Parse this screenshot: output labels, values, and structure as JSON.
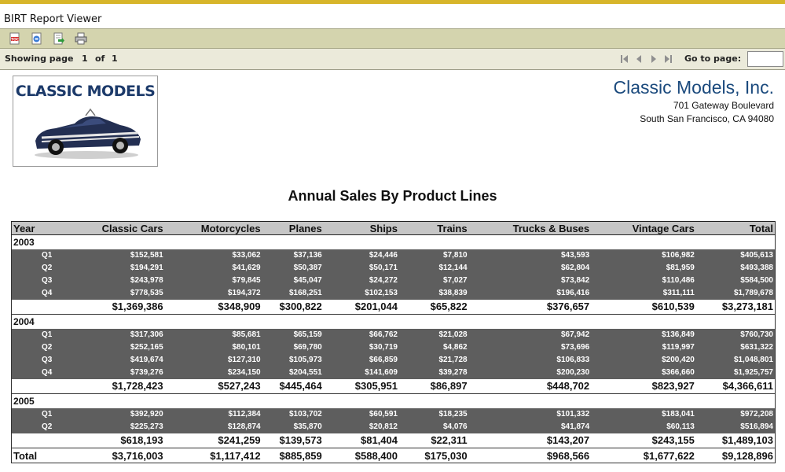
{
  "app": {
    "title": "BIRT Report Viewer"
  },
  "toolbar": {
    "buttons": [
      {
        "name": "toc-button",
        "icon": "toc-icon"
      },
      {
        "name": "parameters-button",
        "icon": "parameters-icon"
      },
      {
        "name": "export-button",
        "icon": "export-icon"
      },
      {
        "name": "print-button",
        "icon": "printer-icon"
      }
    ]
  },
  "navbar": {
    "showing_label": "Showing page",
    "page": "1",
    "of_label": "of",
    "total": "1",
    "goto_label": "Go to page:",
    "goto_value": ""
  },
  "logo": {
    "text": "CLASSIC MODELS"
  },
  "company": {
    "name": "Classic Models, Inc.",
    "address1": "701 Gateway Boulevard",
    "address2": "South San Francisco, CA 94080"
  },
  "report": {
    "title": "Annual Sales By Product Lines",
    "headers": [
      "Year",
      "Classic Cars",
      "Motorcycles",
      "Planes",
      "Ships",
      "Trains",
      "Trucks & Buses",
      "Vintage Cars",
      "Total"
    ],
    "years": [
      {
        "year": "2003",
        "quarters": [
          [
            "Q1",
            "$152,581",
            "$33,062",
            "$37,136",
            "$24,446",
            "$7,810",
            "$43,593",
            "$106,982",
            "$405,613"
          ],
          [
            "Q2",
            "$194,291",
            "$41,629",
            "$50,387",
            "$50,171",
            "$12,144",
            "$62,804",
            "$81,959",
            "$493,388"
          ],
          [
            "Q3",
            "$243,978",
            "$79,845",
            "$45,047",
            "$24,272",
            "$7,027",
            "$73,842",
            "$110,486",
            "$584,500"
          ],
          [
            "Q4",
            "$778,535",
            "$194,372",
            "$168,251",
            "$102,153",
            "$38,839",
            "$196,416",
            "$311,111",
            "$1,789,678"
          ]
        ],
        "subtotal": [
          "$1,369,386",
          "$348,909",
          "$300,822",
          "$201,044",
          "$65,822",
          "$376,657",
          "$610,539",
          "$3,273,181"
        ]
      },
      {
        "year": "2004",
        "quarters": [
          [
            "Q1",
            "$317,306",
            "$85,681",
            "$65,159",
            "$66,762",
            "$21,028",
            "$67,942",
            "$136,849",
            "$760,730"
          ],
          [
            "Q2",
            "$252,165",
            "$80,101",
            "$69,780",
            "$30,719",
            "$4,862",
            "$73,696",
            "$119,997",
            "$631,322"
          ],
          [
            "Q3",
            "$419,674",
            "$127,310",
            "$105,973",
            "$66,859",
            "$21,728",
            "$106,833",
            "$200,420",
            "$1,048,801"
          ],
          [
            "Q4",
            "$739,276",
            "$234,150",
            "$204,551",
            "$141,609",
            "$39,278",
            "$200,230",
            "$366,660",
            "$1,925,757"
          ]
        ],
        "subtotal": [
          "$1,728,423",
          "$527,243",
          "$445,464",
          "$305,951",
          "$86,897",
          "$448,702",
          "$823,927",
          "$4,366,611"
        ]
      },
      {
        "year": "2005",
        "quarters": [
          [
            "Q1",
            "$392,920",
            "$112,384",
            "$103,702",
            "$60,591",
            "$18,235",
            "$101,332",
            "$183,041",
            "$972,208"
          ],
          [
            "Q2",
            "$225,273",
            "$128,874",
            "$35,870",
            "$20,812",
            "$4,076",
            "$41,874",
            "$60,113",
            "$516,894"
          ]
        ],
        "subtotal": [
          "$618,193",
          "$241,259",
          "$139,573",
          "$81,404",
          "$22,311",
          "$143,207",
          "$243,155",
          "$1,489,103"
        ]
      }
    ],
    "grand_total": [
      "Total",
      "$3,716,003",
      "$1,117,412",
      "$885,859",
      "$588,400",
      "$175,030",
      "$968,566",
      "$1,677,622",
      "$9,128,896"
    ]
  },
  "colors": {
    "accent_stripe": "#d7b52a",
    "toolbar_bg": "#d4d4ae",
    "navbar_bg": "#ebeada",
    "company_name": "#1b4a7d",
    "quarter_row_bg": "#5e5e5e",
    "header_bg": "#c6c6c6"
  }
}
